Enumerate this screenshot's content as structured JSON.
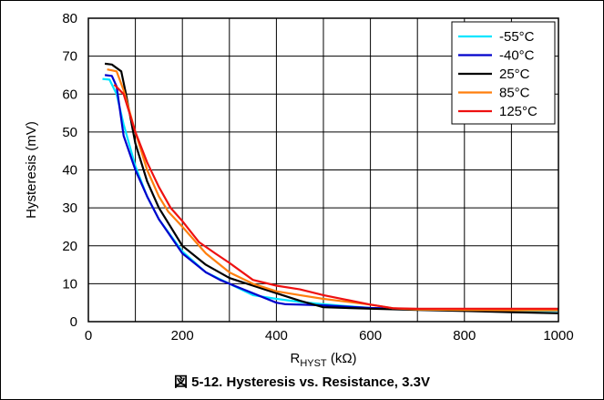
{
  "caption": "図 5-12. Hysteresis vs. Resistance, 3.3V",
  "chart_data": {
    "type": "line",
    "title": "",
    "xlabel_main": "R",
    "xlabel_sub": "HYST",
    "xlabel_unit": " (kΩ)",
    "ylabel": "Hysteresis (mV)",
    "xlim": [
      0,
      1000
    ],
    "ylim": [
      0,
      80
    ],
    "xticks": [
      0,
      200,
      400,
      600,
      800,
      1000
    ],
    "yticks": [
      0,
      10,
      20,
      30,
      40,
      50,
      60,
      70,
      80
    ],
    "x_minor_step": 100,
    "grid": true,
    "legend_position": "top-right",
    "series": [
      {
        "name": "-55°C",
        "color": "#00e5ff",
        "points": [
          [
            30,
            64
          ],
          [
            45,
            63.8
          ],
          [
            60,
            60
          ],
          [
            75,
            52
          ],
          [
            100,
            41
          ],
          [
            125,
            33
          ],
          [
            150,
            27
          ],
          [
            200,
            18.5
          ],
          [
            250,
            13
          ],
          [
            300,
            10
          ],
          [
            350,
            7
          ],
          [
            400,
            6
          ],
          [
            450,
            5.2
          ],
          [
            500,
            4.6
          ],
          [
            600,
            3.6
          ],
          [
            700,
            3.2
          ],
          [
            800,
            3
          ],
          [
            900,
            2.9
          ],
          [
            1000,
            2.8
          ]
        ]
      },
      {
        "name": "-40°C",
        "color": "#0000cc",
        "points": [
          [
            35,
            65
          ],
          [
            50,
            64.8
          ],
          [
            60,
            62
          ],
          [
            75,
            49
          ],
          [
            100,
            40
          ],
          [
            125,
            33
          ],
          [
            150,
            27
          ],
          [
            200,
            18
          ],
          [
            250,
            13
          ],
          [
            280,
            11
          ],
          [
            300,
            10
          ],
          [
            350,
            7.5
          ],
          [
            400,
            5
          ],
          [
            420,
            4.6
          ],
          [
            450,
            4.5
          ],
          [
            500,
            4.3
          ],
          [
            600,
            3.6
          ],
          [
            700,
            3.3
          ],
          [
            800,
            3.2
          ],
          [
            900,
            3.1
          ],
          [
            1000,
            3
          ]
        ]
      },
      {
        "name": "25°C",
        "color": "#000000",
        "points": [
          [
            35,
            68
          ],
          [
            50,
            67.8
          ],
          [
            70,
            66
          ],
          [
            80,
            60
          ],
          [
            100,
            47
          ],
          [
            125,
            37
          ],
          [
            150,
            30
          ],
          [
            200,
            20
          ],
          [
            250,
            15
          ],
          [
            300,
            11.5
          ],
          [
            350,
            9.5
          ],
          [
            400,
            7.5
          ],
          [
            450,
            5.5
          ],
          [
            500,
            3.8
          ],
          [
            600,
            3.4
          ],
          [
            700,
            3.1
          ],
          [
            800,
            2.8
          ],
          [
            900,
            2.5
          ],
          [
            1000,
            2.2
          ]
        ]
      },
      {
        "name": "85°C",
        "color": "#ff7f0e",
        "points": [
          [
            40,
            66.5
          ],
          [
            60,
            66
          ],
          [
            75,
            61
          ],
          [
            100,
            50
          ],
          [
            125,
            40
          ],
          [
            150,
            33
          ],
          [
            170,
            29
          ],
          [
            200,
            25
          ],
          [
            250,
            18
          ],
          [
            300,
            13
          ],
          [
            350,
            10
          ],
          [
            400,
            8
          ],
          [
            450,
            7
          ],
          [
            500,
            6
          ],
          [
            600,
            4.5
          ],
          [
            650,
            3.5
          ],
          [
            700,
            3.2
          ],
          [
            800,
            3.1
          ],
          [
            900,
            3
          ],
          [
            1000,
            3
          ]
        ]
      },
      {
        "name": "125°C",
        "color": "#ee1111",
        "points": [
          [
            55,
            62.5
          ],
          [
            75,
            60
          ],
          [
            100,
            50
          ],
          [
            125,
            42
          ],
          [
            150,
            35.5
          ],
          [
            175,
            30
          ],
          [
            200,
            26.5
          ],
          [
            235,
            21
          ],
          [
            270,
            18
          ],
          [
            300,
            15.5
          ],
          [
            350,
            11
          ],
          [
            400,
            9.5
          ],
          [
            450,
            8.5
          ],
          [
            500,
            7
          ],
          [
            600,
            4.5
          ],
          [
            650,
            3.5
          ],
          [
            700,
            3.4
          ],
          [
            800,
            3.4
          ],
          [
            900,
            3.4
          ],
          [
            1000,
            3.4
          ]
        ]
      }
    ]
  }
}
